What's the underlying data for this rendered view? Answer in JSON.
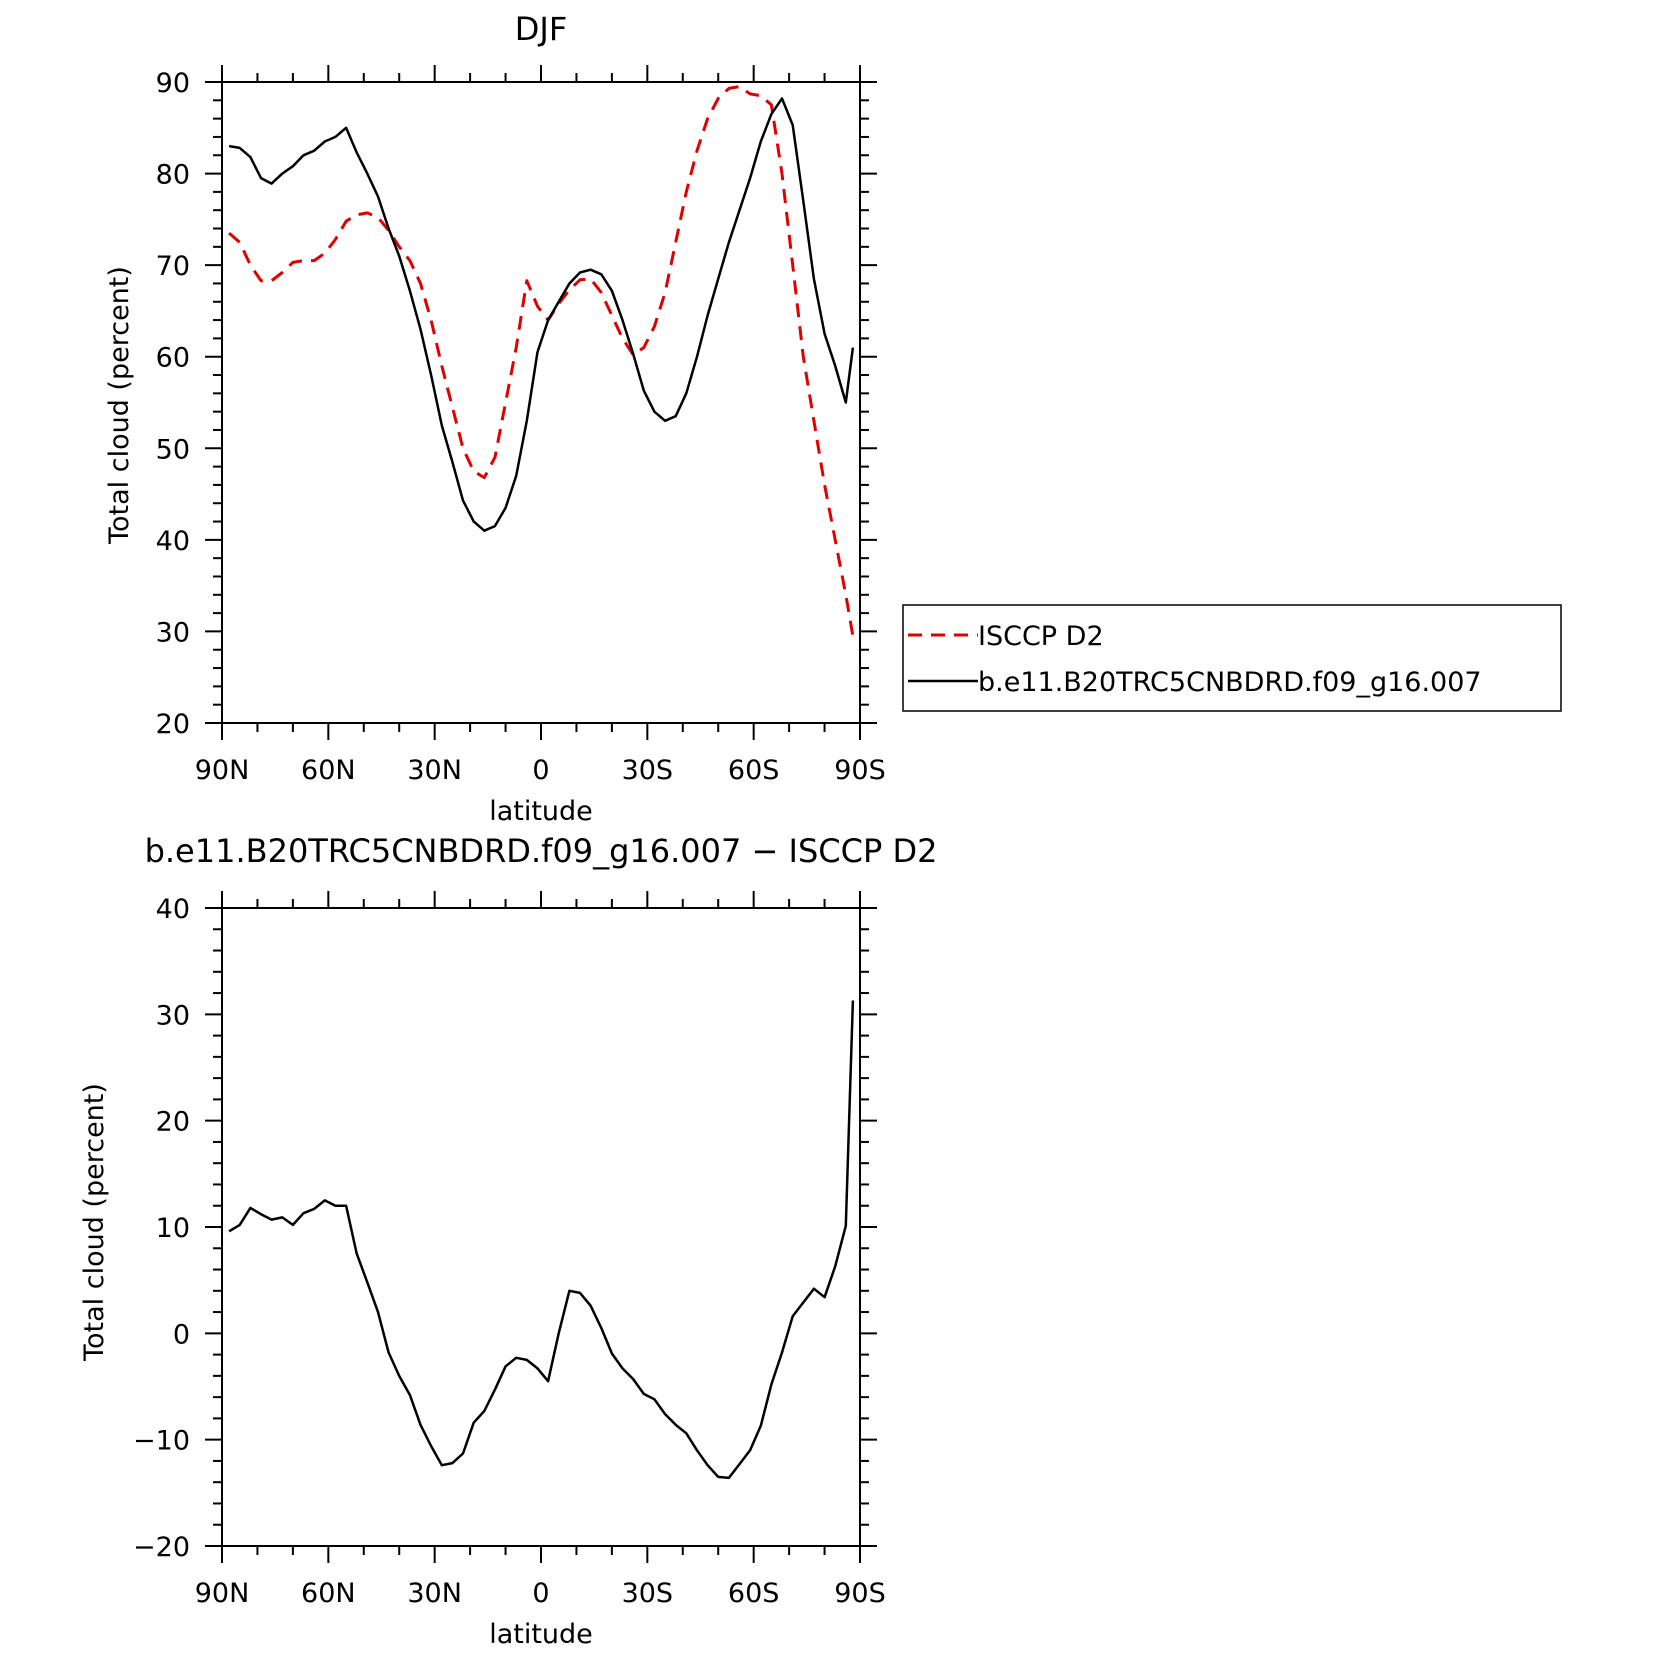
{
  "chart_data": [
    {
      "type": "line",
      "title": "DJF",
      "xlabel": "latitude",
      "ylabel": "Total cloud (percent)",
      "xlim": [
        -90,
        90
      ],
      "ylim": [
        20,
        90
      ],
      "x_ticks": [
        {
          "value": -90,
          "label": "90N"
        },
        {
          "value": -60,
          "label": "60N"
        },
        {
          "value": -30,
          "label": "30N"
        },
        {
          "value": 0,
          "label": "0"
        },
        {
          "value": 30,
          "label": "30S"
        },
        {
          "value": 60,
          "label": "60S"
        },
        {
          "value": 90,
          "label": "90S"
        }
      ],
      "y_ticks": [
        20,
        30,
        40,
        50,
        60,
        70,
        80,
        90
      ],
      "legend": {
        "position": "right",
        "entries": [
          "ISCCP D2",
          "b.e11.B20TRC5CNBDRD.f09_g16.007"
        ]
      },
      "series": [
        {
          "name": "ISCCP D2",
          "color": "#e00000",
          "dash": "dashed",
          "x": [
            -88,
            -85,
            -82,
            -79,
            -76,
            -73,
            -70,
            -67,
            -64,
            -61,
            -58,
            -55,
            -52,
            -49,
            -46,
            -43,
            -40,
            -37,
            -34,
            -31,
            -28,
            -25,
            -22,
            -19,
            -16,
            -13,
            -10,
            -7,
            -4,
            -1,
            2,
            5,
            8,
            11,
            14,
            17,
            20,
            23,
            26,
            29,
            32,
            35,
            38,
            41,
            44,
            47,
            50,
            53,
            56,
            59,
            62,
            65,
            68,
            71,
            74,
            77,
            80,
            83,
            86,
            88
          ],
          "y": [
            73.5,
            72.5,
            70.0,
            68.3,
            68.3,
            69.2,
            70.3,
            70.5,
            70.5,
            71.3,
            72.8,
            74.8,
            75.5,
            75.7,
            75.2,
            73.8,
            72.0,
            70.5,
            68.0,
            64.0,
            59.0,
            54.5,
            50.0,
            47.5,
            46.8,
            49.0,
            55.0,
            61.0,
            68.3,
            65.5,
            64.0,
            65.8,
            67.3,
            68.4,
            68.5,
            67.0,
            64.5,
            62.0,
            60.2,
            61.0,
            63.3,
            67.0,
            72.5,
            78.0,
            82.5,
            86.0,
            88.2,
            89.3,
            89.5,
            88.7,
            88.5,
            87.5,
            80.0,
            70.0,
            60.0,
            53.0,
            46.0,
            40.0,
            34.0,
            29.5
          ]
        },
        {
          "name": "b.e11.B20TRC5CNBDRD.f09_g16.007",
          "color": "#000000",
          "dash": "solid",
          "x": [
            -88,
            -85,
            -82,
            -79,
            -76,
            -73,
            -70,
            -67,
            -64,
            -61,
            -58,
            -55,
            -52,
            -49,
            -46,
            -43,
            -40,
            -37,
            -34,
            -31,
            -28,
            -25,
            -22,
            -19,
            -16,
            -13,
            -10,
            -7,
            -4,
            -1,
            2,
            5,
            8,
            11,
            14,
            17,
            20,
            23,
            26,
            29,
            32,
            35,
            38,
            41,
            44,
            47,
            50,
            53,
            56,
            59,
            62,
            65,
            68,
            71,
            74,
            77,
            80,
            83,
            86,
            88
          ],
          "y": [
            83.0,
            82.8,
            81.8,
            79.5,
            78.9,
            80.0,
            80.8,
            82.0,
            82.5,
            83.5,
            84.0,
            85.0,
            82.3,
            80.0,
            77.5,
            74.0,
            71.0,
            67.2,
            63.0,
            58.0,
            52.5,
            48.5,
            44.3,
            42.0,
            41.0,
            41.5,
            43.5,
            47.0,
            53.0,
            60.5,
            64.0,
            66.0,
            68.0,
            69.2,
            69.5,
            69.0,
            67.2,
            64.0,
            60.3,
            56.3,
            54.0,
            53.0,
            53.5,
            56.0,
            60.0,
            64.5,
            68.5,
            72.5,
            76.0,
            79.5,
            83.5,
            86.5,
            88.2,
            85.3,
            77.0,
            68.5,
            62.5,
            59.0,
            55.0,
            61.0
          ]
        }
      ]
    },
    {
      "type": "line",
      "title": "b.e11.B20TRC5CNBDRD.f09_g16.007 − ISCCP D2",
      "xlabel": "latitude",
      "ylabel": "Total cloud (percent)",
      "xlim": [
        -90,
        90
      ],
      "ylim": [
        -20,
        40
      ],
      "x_ticks": [
        {
          "value": -90,
          "label": "90N"
        },
        {
          "value": -60,
          "label": "60N"
        },
        {
          "value": -30,
          "label": "30N"
        },
        {
          "value": 0,
          "label": "0"
        },
        {
          "value": 30,
          "label": "30S"
        },
        {
          "value": 60,
          "label": "60S"
        },
        {
          "value": 90,
          "label": "90S"
        }
      ],
      "y_ticks": [
        -20,
        -10,
        0,
        10,
        20,
        30,
        40
      ],
      "series": [
        {
          "color": "#000000",
          "dash": "solid",
          "x": [
            -88,
            -85,
            -82,
            -79,
            -76,
            -73,
            -70,
            -67,
            -64,
            -61,
            -58,
            -55,
            -52,
            -49,
            -46,
            -43,
            -40,
            -37,
            -34,
            -31,
            -28,
            -25,
            -22,
            -19,
            -16,
            -13,
            -10,
            -7,
            -4,
            -1,
            2,
            5,
            8,
            11,
            14,
            17,
            20,
            23,
            26,
            29,
            32,
            35,
            38,
            41,
            44,
            47,
            50,
            53,
            56,
            59,
            62,
            65,
            68,
            71,
            74,
            77,
            80,
            83,
            86,
            88
          ],
          "y": [
            9.6,
            10.2,
            11.8,
            11.2,
            10.7,
            10.9,
            10.2,
            11.3,
            11.7,
            12.5,
            12.0,
            12.0,
            7.5,
            4.8,
            2.0,
            -1.8,
            -4.0,
            -5.8,
            -8.6,
            -10.6,
            -12.4,
            -12.2,
            -11.3,
            -8.4,
            -7.3,
            -5.3,
            -3.1,
            -2.3,
            -2.5,
            -3.3,
            -4.5,
            0.0,
            4.0,
            3.8,
            2.6,
            0.5,
            -1.9,
            -3.3,
            -4.3,
            -5.7,
            -6.2,
            -7.6,
            -8.6,
            -9.4,
            -11.0,
            -12.4,
            -13.5,
            -13.6,
            -12.3,
            -11.0,
            -8.7,
            -4.8,
            -1.8,
            1.6,
            2.9,
            4.2,
            3.4,
            6.3,
            10.1,
            31.3
          ]
        }
      ]
    }
  ]
}
